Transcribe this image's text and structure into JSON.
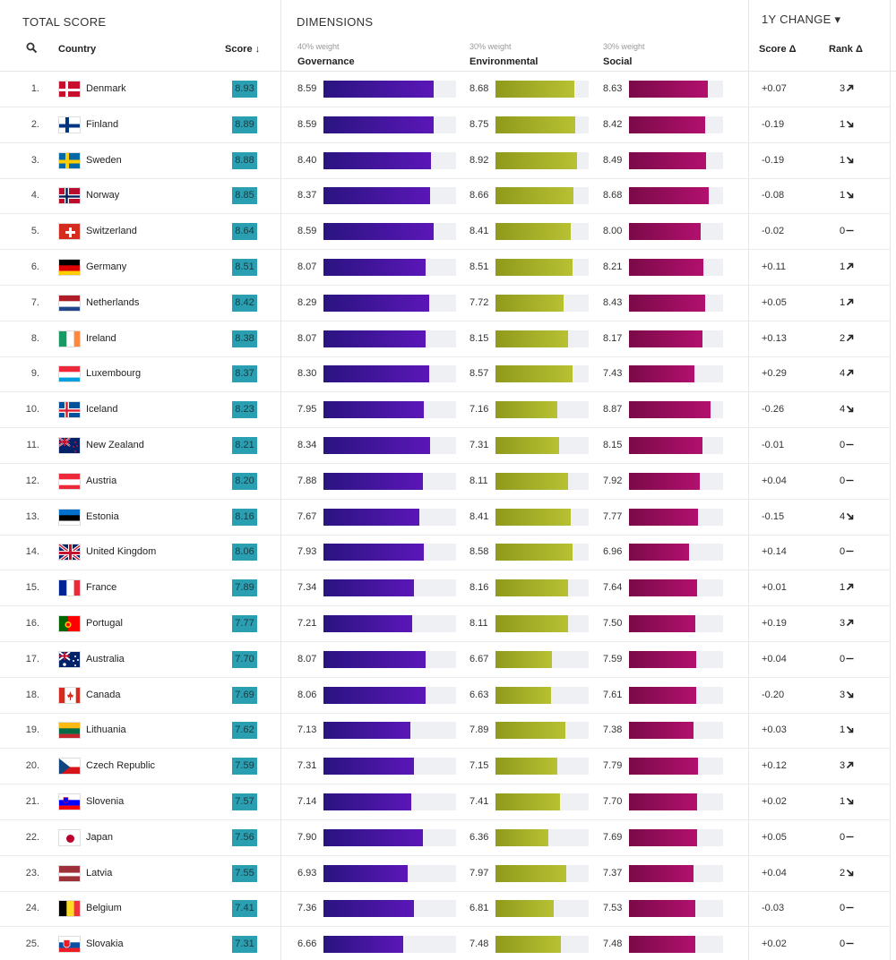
{
  "header": {
    "total_score": "TOTAL SCORE",
    "dimensions": "DIMENSIONS",
    "change": "1Y CHANGE ▾"
  },
  "columns": {
    "country": "Country",
    "score": "Score ↓",
    "gov_weight": "40% weight",
    "governance": "Governance",
    "env_weight": "30% weight",
    "environmental": "Environmental",
    "soc_weight": "30% weight",
    "social": "Social",
    "score_delta": "Score Δ",
    "rank_delta": "Rank Δ"
  },
  "colors": {
    "score_badge": "#2a9fb1",
    "governance": "#4a14a8",
    "environmental": "#a7b22a",
    "social": "#a00e62"
  },
  "chart_data": {
    "type": "table",
    "scale_max": 10,
    "columns": [
      "Rank",
      "Country",
      "Score",
      "Governance",
      "Environmental",
      "Social",
      "Score Δ",
      "Rank Δ"
    ],
    "rows": [
      {
        "rank": "1.",
        "country": "Denmark",
        "flag": "dk",
        "score": "8.93",
        "gov": 8.59,
        "env": 8.68,
        "soc": 8.63,
        "sdelta": "+0.07",
        "rdelta": "3",
        "dir": "up"
      },
      {
        "rank": "2.",
        "country": "Finland",
        "flag": "fi",
        "score": "8.89",
        "gov": 8.59,
        "env": 8.75,
        "soc": 8.42,
        "sdelta": "-0.19",
        "rdelta": "1",
        "dir": "down"
      },
      {
        "rank": "3.",
        "country": "Sweden",
        "flag": "se",
        "score": "8.88",
        "gov": 8.4,
        "env": 8.92,
        "soc": 8.49,
        "sdelta": "-0.19",
        "rdelta": "1",
        "dir": "down"
      },
      {
        "rank": "4.",
        "country": "Norway",
        "flag": "no",
        "score": "8.85",
        "gov": 8.37,
        "env": 8.66,
        "soc": 8.68,
        "sdelta": "-0.08",
        "rdelta": "1",
        "dir": "down"
      },
      {
        "rank": "5.",
        "country": "Switzerland",
        "flag": "ch",
        "score": "8.64",
        "gov": 8.59,
        "env": 8.41,
        "soc": 8.0,
        "sdelta": "-0.02",
        "rdelta": "0",
        "dir": "flat"
      },
      {
        "rank": "6.",
        "country": "Germany",
        "flag": "de",
        "score": "8.51",
        "gov": 8.07,
        "env": 8.51,
        "soc": 8.21,
        "sdelta": "+0.11",
        "rdelta": "1",
        "dir": "up"
      },
      {
        "rank": "7.",
        "country": "Netherlands",
        "flag": "nl",
        "score": "8.42",
        "gov": 8.29,
        "env": 7.72,
        "soc": 8.43,
        "sdelta": "+0.05",
        "rdelta": "1",
        "dir": "up"
      },
      {
        "rank": "8.",
        "country": "Ireland",
        "flag": "ie",
        "score": "8.38",
        "gov": 8.07,
        "env": 8.15,
        "soc": 8.17,
        "sdelta": "+0.13",
        "rdelta": "2",
        "dir": "up"
      },
      {
        "rank": "9.",
        "country": "Luxembourg",
        "flag": "lu",
        "score": "8.37",
        "gov": 8.3,
        "env": 8.57,
        "soc": 7.43,
        "sdelta": "+0.29",
        "rdelta": "4",
        "dir": "up"
      },
      {
        "rank": "10.",
        "country": "Iceland",
        "flag": "is",
        "score": "8.23",
        "gov": 7.95,
        "env": 7.16,
        "soc": 8.87,
        "sdelta": "-0.26",
        "rdelta": "4",
        "dir": "down"
      },
      {
        "rank": "11.",
        "country": "New Zealand",
        "flag": "nz",
        "score": "8.21",
        "gov": 8.34,
        "env": 7.31,
        "soc": 8.15,
        "sdelta": "-0.01",
        "rdelta": "0",
        "dir": "flat"
      },
      {
        "rank": "12.",
        "country": "Austria",
        "flag": "at",
        "score": "8.20",
        "gov": 7.88,
        "env": 8.11,
        "soc": 7.92,
        "sdelta": "+0.04",
        "rdelta": "0",
        "dir": "flat"
      },
      {
        "rank": "13.",
        "country": "Estonia",
        "flag": "ee",
        "score": "8.16",
        "gov": 7.67,
        "env": 8.41,
        "soc": 7.77,
        "sdelta": "-0.15",
        "rdelta": "4",
        "dir": "down"
      },
      {
        "rank": "14.",
        "country": "United Kingdom",
        "flag": "gb",
        "score": "8.06",
        "gov": 7.93,
        "env": 8.58,
        "soc": 6.96,
        "sdelta": "+0.14",
        "rdelta": "0",
        "dir": "flat"
      },
      {
        "rank": "15.",
        "country": "France",
        "flag": "fr",
        "score": "7.89",
        "gov": 7.34,
        "env": 8.16,
        "soc": 7.64,
        "sdelta": "+0.01",
        "rdelta": "1",
        "dir": "up"
      },
      {
        "rank": "16.",
        "country": "Portugal",
        "flag": "pt",
        "score": "7.77",
        "gov": 7.21,
        "env": 8.11,
        "soc": 7.5,
        "sdelta": "+0.19",
        "rdelta": "3",
        "dir": "up"
      },
      {
        "rank": "17.",
        "country": "Australia",
        "flag": "au",
        "score": "7.70",
        "gov": 8.07,
        "env": 6.67,
        "soc": 7.59,
        "sdelta": "+0.04",
        "rdelta": "0",
        "dir": "flat"
      },
      {
        "rank": "18.",
        "country": "Canada",
        "flag": "ca",
        "score": "7.69",
        "gov": 8.06,
        "env": 6.63,
        "soc": 7.61,
        "sdelta": "-0.20",
        "rdelta": "3",
        "dir": "down"
      },
      {
        "rank": "19.",
        "country": "Lithuania",
        "flag": "lt",
        "score": "7.62",
        "gov": 7.13,
        "env": 7.89,
        "soc": 7.38,
        "sdelta": "+0.03",
        "rdelta": "1",
        "dir": "down"
      },
      {
        "rank": "20.",
        "country": "Czech Republic",
        "flag": "cz",
        "score": "7.59",
        "gov": 7.31,
        "env": 7.15,
        "soc": 7.79,
        "sdelta": "+0.12",
        "rdelta": "3",
        "dir": "up"
      },
      {
        "rank": "21.",
        "country": "Slovenia",
        "flag": "si",
        "score": "7.57",
        "gov": 7.14,
        "env": 7.41,
        "soc": 7.7,
        "sdelta": "+0.02",
        "rdelta": "1",
        "dir": "down"
      },
      {
        "rank": "22.",
        "country": "Japan",
        "flag": "jp",
        "score": "7.56",
        "gov": 7.9,
        "env": 6.36,
        "soc": 7.69,
        "sdelta": "+0.05",
        "rdelta": "0",
        "dir": "flat"
      },
      {
        "rank": "23.",
        "country": "Latvia",
        "flag": "lv",
        "score": "7.55",
        "gov": 6.93,
        "env": 7.97,
        "soc": 7.37,
        "sdelta": "+0.04",
        "rdelta": "2",
        "dir": "down"
      },
      {
        "rank": "24.",
        "country": "Belgium",
        "flag": "be",
        "score": "7.41",
        "gov": 7.36,
        "env": 6.81,
        "soc": 7.53,
        "sdelta": "-0.03",
        "rdelta": "0",
        "dir": "flat"
      },
      {
        "rank": "25.",
        "country": "Slovakia",
        "flag": "sk",
        "score": "7.31",
        "gov": 6.66,
        "env": 7.48,
        "soc": 7.48,
        "sdelta": "+0.02",
        "rdelta": "0",
        "dir": "flat"
      }
    ]
  }
}
